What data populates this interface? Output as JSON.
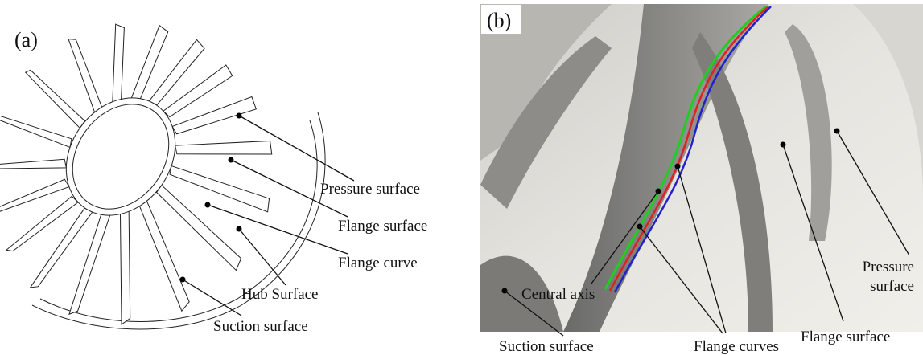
{
  "panels": [
    {
      "label": "(a)",
      "annotations": [
        "Pressure surface",
        "Flange surface",
        "Flange curve",
        "Hub Surface",
        "Suction surface"
      ]
    },
    {
      "label": "(b)",
      "annotations": [
        "Central axis",
        "Flange curves",
        "Flange surface",
        "Suction surface"
      ],
      "pressure_label": [
        "Pressure",
        "surface"
      ]
    }
  ]
}
